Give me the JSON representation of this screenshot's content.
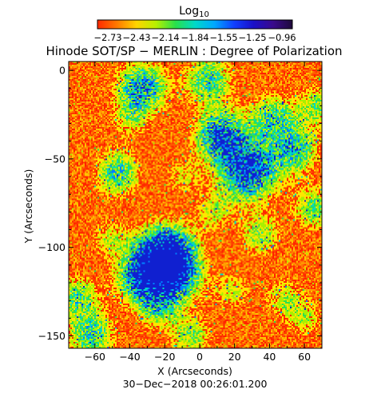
{
  "colorbar": {
    "label_main": "Log",
    "label_sub": "10",
    "ticks": [
      "−2.73",
      "−2.43",
      "−2.14",
      "−1.84",
      "−1.55",
      "−1.25",
      "−0.96"
    ],
    "stops": [
      "#ff2a00",
      "#ff7a00",
      "#ffd400",
      "#b8f000",
      "#29e04a",
      "#00d9c8",
      "#00a8ff",
      "#1040ff",
      "#1a10c8",
      "#3a0a8c",
      "#1e0a3a"
    ]
  },
  "title": "Hinode SOT/SP − MERLIN : Degree of Polarization",
  "x_axis": {
    "label": "X (Arcseconds)",
    "range": [
      -75,
      70
    ],
    "ticks": [
      -60,
      -40,
      -20,
      0,
      20,
      40,
      60
    ],
    "tick_labels": [
      "−60",
      "−40",
      "−20",
      "0",
      "20",
      "40",
      "60"
    ]
  },
  "y_axis": {
    "label": "Y (Arcseconds)",
    "range": [
      -157,
      5
    ],
    "ticks": [
      0,
      -50,
      -100,
      -150
    ],
    "tick_labels": [
      "0",
      "−50",
      "−100",
      "−150"
    ]
  },
  "timestamp": "30−Dec−2018 00:26:01.200",
  "map": {
    "background_colors": [
      "#ff2200",
      "#ff3a00",
      "#ff5a00",
      "#ff7a00",
      "#ffa000",
      "#ffc400"
    ],
    "feature_colors": [
      "#ffe600",
      "#a8f000",
      "#2ee04e",
      "#00d8c4",
      "#0080ff",
      "#1020d0"
    ],
    "features": [
      {
        "x": -20,
        "y": -104,
        "strength": 1.0
      },
      {
        "x": -18,
        "y": -115,
        "strength": 0.95
      },
      {
        "x": 28,
        "y": -57,
        "strength": 0.95
      },
      {
        "x": 12,
        "y": -37,
        "strength": 0.8
      },
      {
        "x": -33,
        "y": -10,
        "strength": 0.75
      },
      {
        "x": 5,
        "y": -5,
        "strength": 0.6
      },
      {
        "x": 42,
        "y": -26,
        "strength": 0.55
      },
      {
        "x": 55,
        "y": -45,
        "strength": 0.6
      },
      {
        "x": 68,
        "y": -20,
        "strength": 0.45
      },
      {
        "x": -47,
        "y": -58,
        "strength": 0.6
      },
      {
        "x": -36,
        "y": -118,
        "strength": 0.55
      },
      {
        "x": -62,
        "y": -150,
        "strength": 0.6
      },
      {
        "x": -70,
        "y": -128,
        "strength": 0.5
      },
      {
        "x": 35,
        "y": -93,
        "strength": 0.45
      },
      {
        "x": 66,
        "y": -78,
        "strength": 0.5
      },
      {
        "x": -5,
        "y": -150,
        "strength": 0.45
      },
      {
        "x": -25,
        "y": -135,
        "strength": 0.4
      },
      {
        "x": 18,
        "y": -125,
        "strength": 0.35
      },
      {
        "x": -52,
        "y": -95,
        "strength": 0.35
      },
      {
        "x": 8,
        "y": -80,
        "strength": 0.35
      },
      {
        "x": 48,
        "y": -128,
        "strength": 0.35
      },
      {
        "x": -10,
        "y": -60,
        "strength": 0.3
      },
      {
        "x": 60,
        "y": -140,
        "strength": 0.35
      },
      {
        "x": -40,
        "y": -28,
        "strength": 0.3
      }
    ]
  }
}
